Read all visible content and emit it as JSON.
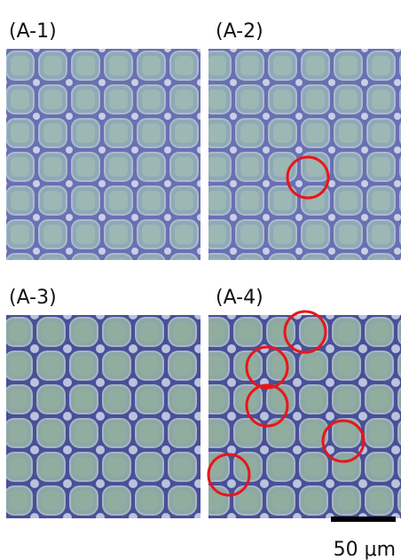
{
  "panels": [
    {
      "label": "(A-1)"
    },
    {
      "label": "(A-2)"
    },
    {
      "label": "(A-3)"
    },
    {
      "label": "(A-4)"
    }
  ],
  "scale_bar": {
    "label": "50 μm"
  }
}
